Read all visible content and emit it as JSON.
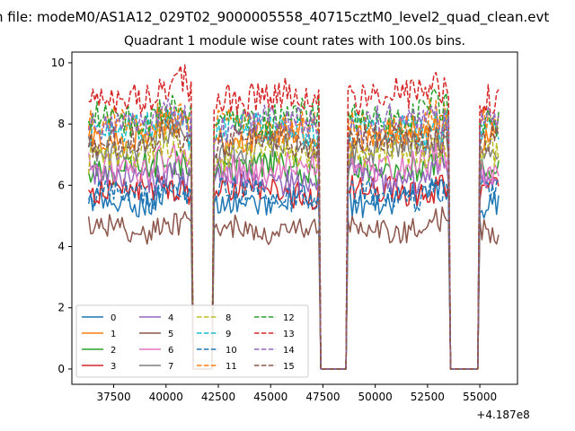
{
  "chart_data": {
    "type": "line",
    "suptitle": "n file: modeM0/AS1A12_029T02_9000005558_40715cztM0_level2_quad_clean.evt",
    "title": "Quadrant 1 module wise count rates with 100.0s bins.",
    "xlabel": "",
    "ylabel": "",
    "xlim": [
      35500,
      56800
    ],
    "ylim": [
      -0.5,
      10.35
    ],
    "x_offset_label": "+4.187e8",
    "xticks": [
      37500,
      40000,
      42500,
      45000,
      47500,
      50000,
      52500,
      55000
    ],
    "yticks": [
      0,
      2,
      4,
      6,
      8,
      10
    ],
    "grid": false,
    "legend": {
      "location": "lower-left",
      "columns": 4
    },
    "x_range": [
      36300,
      55900
    ],
    "gaps": [
      [
        41250,
        42250
      ],
      [
        47350,
        48650
      ],
      [
        53600,
        54950
      ]
    ],
    "series": [
      {
        "name": "0",
        "color": "#1f77b4",
        "style": "solid",
        "level": 5.5
      },
      {
        "name": "1",
        "color": "#ff7f0e",
        "style": "solid",
        "level": 7.6
      },
      {
        "name": "2",
        "color": "#2ca02c",
        "style": "solid",
        "level": 6.5
      },
      {
        "name": "3",
        "color": "#d62728",
        "style": "solid",
        "level": 5.8
      },
      {
        "name": "4",
        "color": "#9467bd",
        "style": "solid",
        "level": 6.2
      },
      {
        "name": "5",
        "color": "#8c564b",
        "style": "solid",
        "level": 4.6
      },
      {
        "name": "6",
        "color": "#e377c2",
        "style": "solid",
        "level": 6.6
      },
      {
        "name": "7",
        "color": "#7f7f7f",
        "style": "solid",
        "level": 7.2
      },
      {
        "name": "8",
        "color": "#bcbd22",
        "style": "dashed",
        "level": 7.0
      },
      {
        "name": "9",
        "color": "#17becf",
        "style": "dashed",
        "level": 7.8
      },
      {
        "name": "10",
        "color": "#1f77b4",
        "style": "dashed",
        "level": 5.7
      },
      {
        "name": "11",
        "color": "#ff7f0e",
        "style": "dashed",
        "level": 8.0
      },
      {
        "name": "12",
        "color": "#2ca02c",
        "style": "dashed",
        "level": 8.2
      },
      {
        "name": "13",
        "color": "#d62728",
        "style": "dashed",
        "level": 8.9
      },
      {
        "name": "14",
        "color": "#9467bd",
        "style": "dashed",
        "level": 8.0
      },
      {
        "name": "15",
        "color": "#8c564b",
        "style": "dashed",
        "level": 7.4
      }
    ]
  }
}
